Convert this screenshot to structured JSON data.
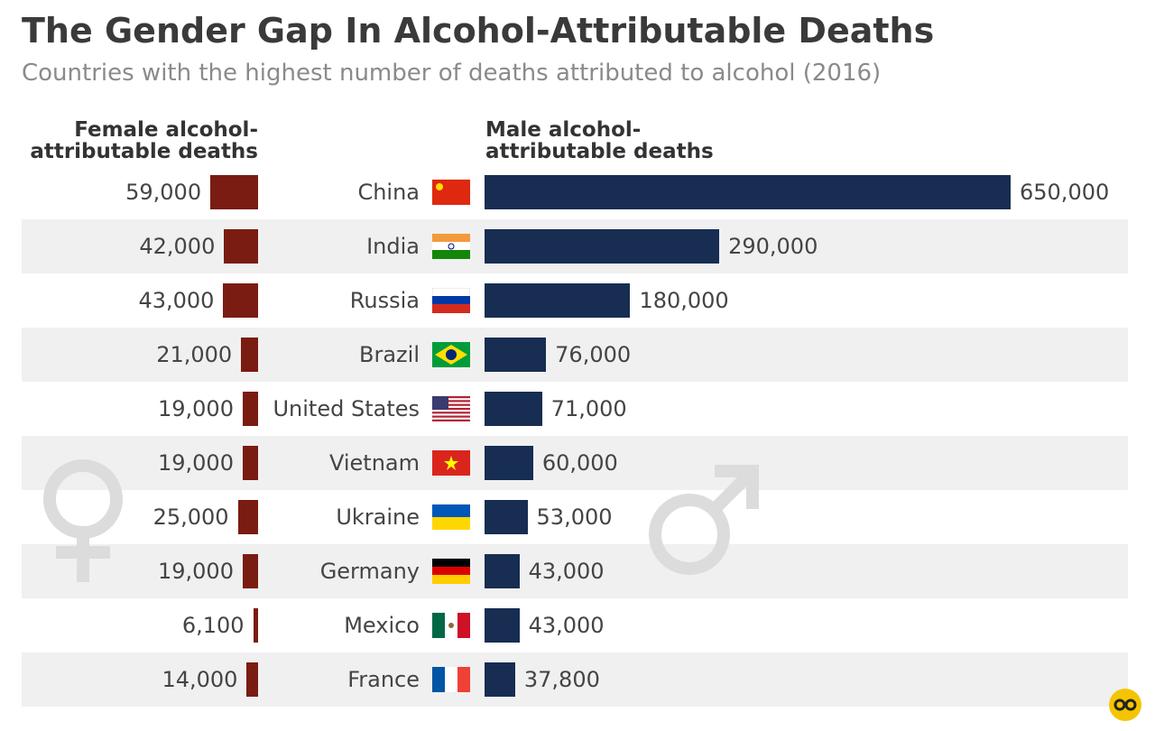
{
  "chart_data": {
    "type": "bar",
    "title": "The Gender Gap In Alcohol-Attributable Deaths",
    "subtitle": "Countries with the highest number of deaths attributed to alcohol (2016)",
    "categories": [
      "China",
      "India",
      "Russia",
      "Brazil",
      "United States",
      "Vietnam",
      "Ukraine",
      "Germany",
      "Mexico",
      "France"
    ],
    "series": [
      {
        "name": "Female alcohol-attributable deaths",
        "color": "#7a1c12",
        "values": [
          59000,
          42000,
          43000,
          21000,
          19000,
          19000,
          25000,
          19000,
          6100,
          14000
        ],
        "value_labels": [
          "59,000",
          "42,000",
          "43,000",
          "21,000",
          "19,000",
          "19,000",
          "25,000",
          "19,000",
          "6,100",
          "14,000"
        ]
      },
      {
        "name": "Male alcohol-attributable deaths",
        "color": "#172d52",
        "values": [
          650000,
          290000,
          180000,
          76000,
          71000,
          60000,
          53000,
          43000,
          43000,
          37800
        ],
        "value_labels": [
          "650,000",
          "290,000",
          "180,000",
          "76,000",
          "71,000",
          "60,000",
          "53,000",
          "43,000",
          "43,000",
          "37,800"
        ]
      }
    ]
  }
}
